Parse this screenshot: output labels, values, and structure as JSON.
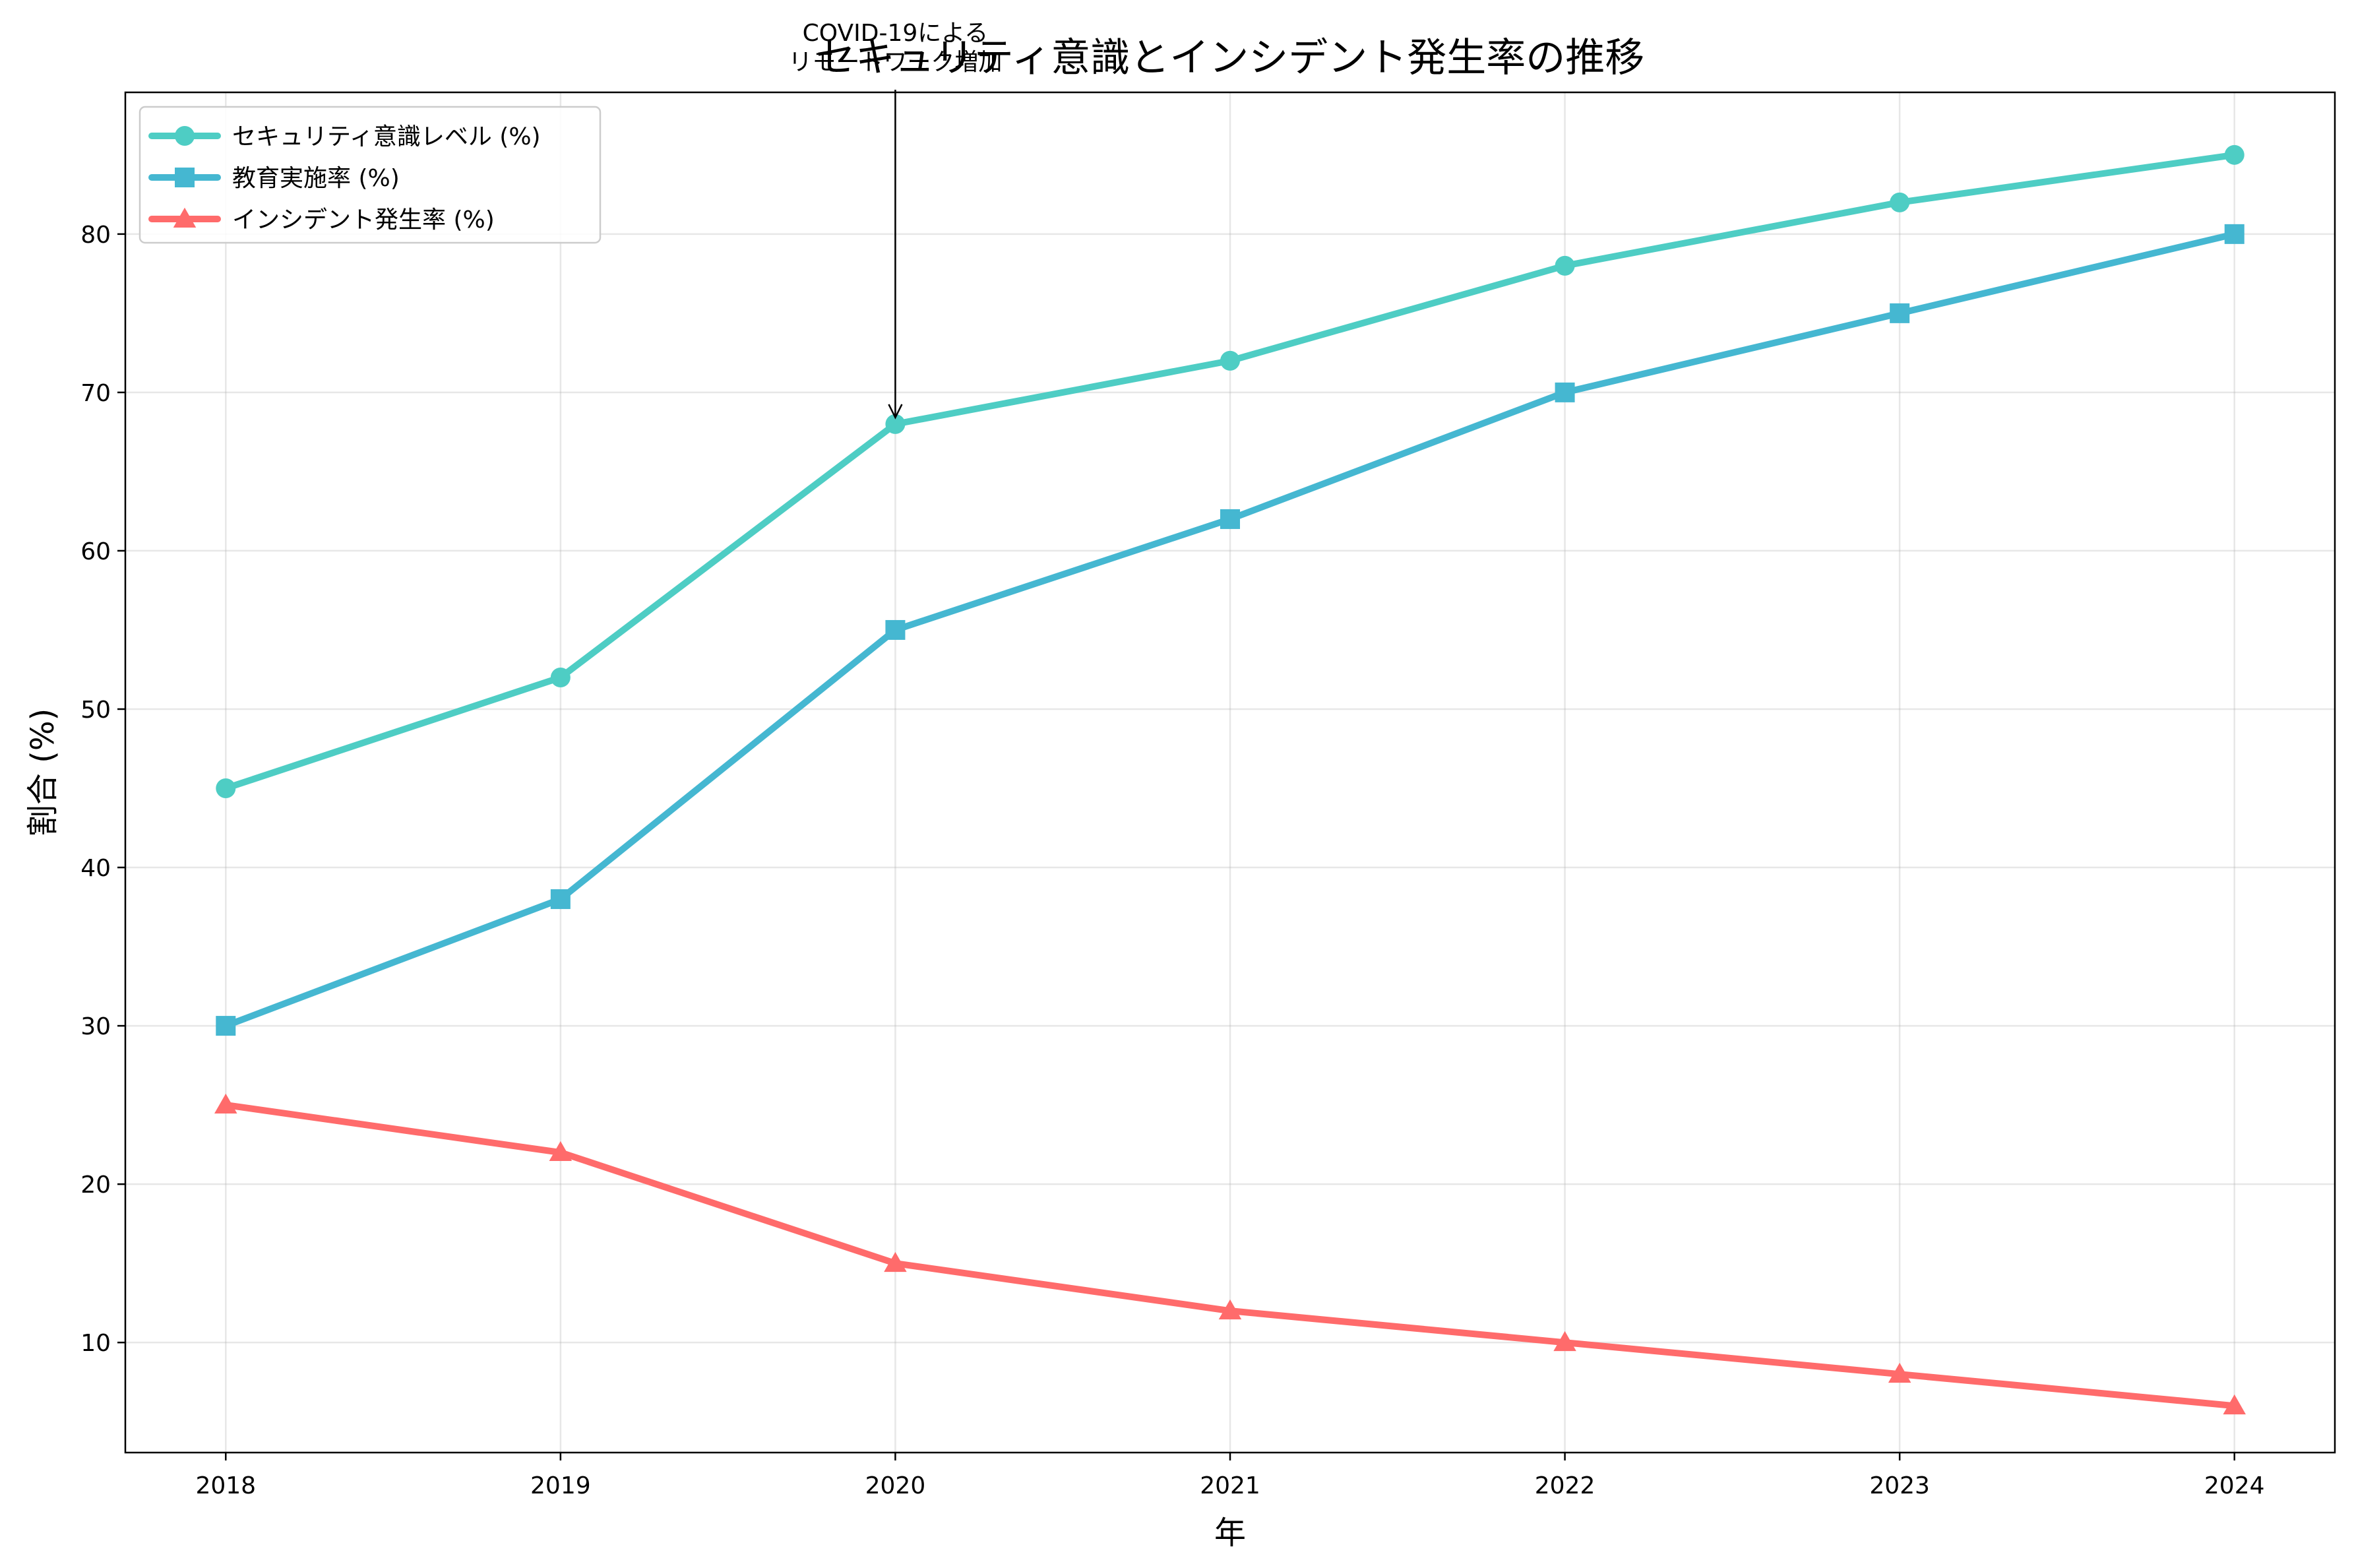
{
  "chart_data": {
    "type": "line",
    "title": "セキュリティ意識とインシデント発生率の推移",
    "xlabel": "年",
    "ylabel": "割合 (%)",
    "x": [
      2018,
      2019,
      2020,
      2021,
      2022,
      2023,
      2024
    ],
    "x_tick_labels": [
      "2018",
      "2019",
      "2020",
      "2021",
      "2022",
      "2023",
      "2024"
    ],
    "xlim": [
      2017.7,
      2024.3
    ],
    "ylim": [
      3.05,
      88.95
    ],
    "y_ticks": [
      10,
      20,
      30,
      40,
      50,
      60,
      70,
      80
    ],
    "y_tick_labels": [
      "10",
      "20",
      "30",
      "40",
      "50",
      "60",
      "70",
      "80"
    ],
    "grid": true,
    "legend_position": "upper-left",
    "series": [
      {
        "name": "セキュリティ意識レベル (%)",
        "values": [
          45,
          52,
          68,
          72,
          78,
          82,
          85
        ],
        "color": "#4ECDC4",
        "marker": "circle"
      },
      {
        "name": "教育実施率 (%)",
        "values": [
          30,
          38,
          55,
          62,
          70,
          75,
          80
        ],
        "color": "#45B7D1",
        "marker": "square"
      },
      {
        "name": "インシデント発生率 (%)",
        "values": [
          25,
          22,
          15,
          12,
          10,
          8,
          6
        ],
        "color": "#FF6B6B",
        "marker": "triangle"
      }
    ],
    "annotations": [
      {
        "text_lines": [
          "COVID-19による",
          "リモートワーク増加"
        ],
        "target_x": 2020,
        "target_y": 68
      }
    ]
  }
}
